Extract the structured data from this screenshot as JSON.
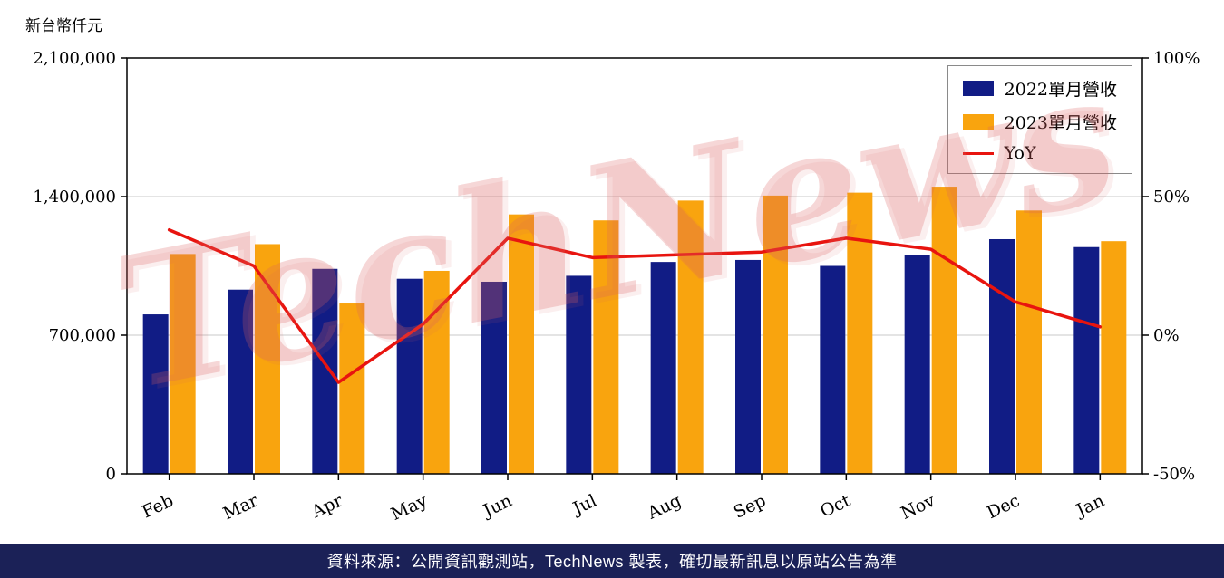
{
  "page": {
    "y_axis_title": "新台幣仟元",
    "watermark": "TechNews",
    "footer": "資料來源：公開資訊觀測站，TechNews 製表，確切最新訊息以原站公告為準"
  },
  "chart_data": {
    "type": "bar",
    "subtype": "grouped-bar-with-line-overlay",
    "categories": [
      "Feb",
      "Mar",
      "Apr",
      "May",
      "Jun",
      "Jul",
      "Aug",
      "Sep",
      "Oct",
      "Nov",
      "Dec",
      "Jan"
    ],
    "series": [
      {
        "name": "2022單月營收",
        "type": "bar",
        "axis": "left",
        "color": "#111c85",
        "values": [
          805000,
          930000,
          1035000,
          985000,
          970000,
          1000000,
          1070000,
          1080000,
          1050000,
          1105000,
          1185000,
          1145000
        ]
      },
      {
        "name": "2023單月營收",
        "type": "bar",
        "axis": "left",
        "color": "#f9a40e",
        "values": [
          1110000,
          1160000,
          860000,
          1025000,
          1310000,
          1280000,
          1380000,
          1405000,
          1420000,
          1450000,
          1330000,
          1175000
        ]
      },
      {
        "name": "YoY",
        "type": "line",
        "axis": "right",
        "color": "#e8140f",
        "values": [
          38,
          25,
          -17,
          4,
          35,
          28,
          29,
          30,
          35,
          31,
          12,
          3
        ]
      }
    ],
    "left_axis": {
      "title": "新台幣仟元",
      "unit": "新台幣仟元",
      "min": 0,
      "max": 2100000,
      "ticks": [
        "0",
        "700,000",
        "1,400,000",
        "2,100,000"
      ]
    },
    "right_axis": {
      "unit": "%",
      "min": -50,
      "max": 100,
      "ticks": [
        "-50%",
        "0%",
        "50%",
        "100%"
      ]
    },
    "legend_position": "top-right",
    "grid": true
  }
}
